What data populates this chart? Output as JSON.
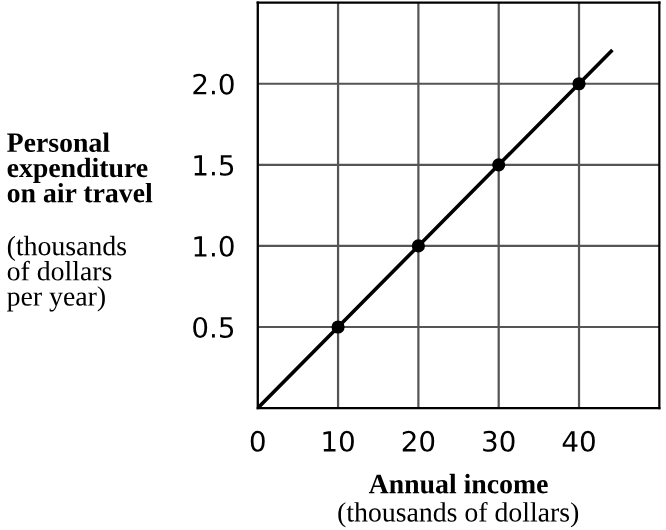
{
  "chart_data": {
    "type": "line",
    "xlabel": "Annual income",
    "ylabel": "Personal\nexpenditure\non air travel",
    "annotations": [
      "(thousands\nof dollars\nper year)",
      "(thousands of dollars)"
    ],
    "series": [
      {
        "color": "#000000",
        "x": [
          0,
          10,
          20,
          30,
          40,
          44
        ],
        "values": [
          0,
          0.5,
          1.0,
          1.5,
          2.0,
          2.2
        ],
        "marker": "none"
      },
      {
        "type": "scatter",
        "color": "#000000",
        "x": [
          10,
          20,
          30,
          40
        ],
        "values": [
          0.5,
          1.0,
          1.5,
          2.0
        ],
        "marker": "circle"
      }
    ],
    "xlim": [
      0,
      50
    ],
    "ylim": [
      0,
      2.5
    ],
    "xticks": [
      0,
      10,
      20,
      30,
      40
    ],
    "yticks": [
      0.5,
      {
        "value": 1,
        "label": "1.0"
      },
      1.5,
      {
        "value": 2,
        "label": "2.0"
      }
    ],
    "grid": true
  }
}
